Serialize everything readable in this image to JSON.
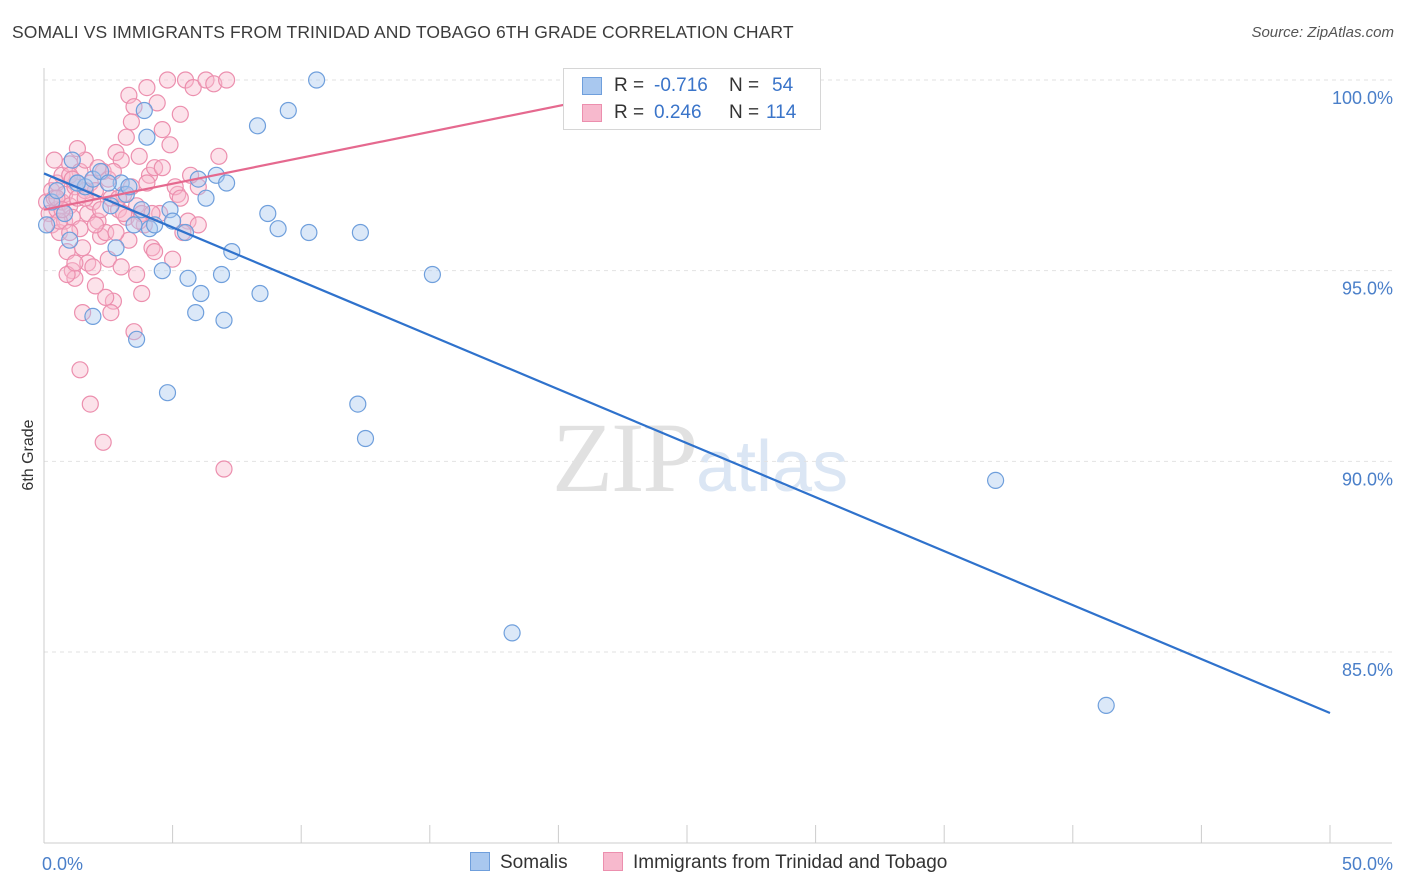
{
  "header": {
    "title": "SOMALI VS IMMIGRANTS FROM TRINIDAD AND TOBAGO 6TH GRADE CORRELATION CHART",
    "source": "Source: ZipAtlas.com"
  },
  "watermark": {
    "zip": "ZIP",
    "atlas": "atlas"
  },
  "legend": {
    "r_label": "R =",
    "n_label": "N =",
    "rows": [
      {
        "r": "-0.716",
        "n": "54"
      },
      {
        "r": "0.246",
        "n": "114"
      }
    ]
  },
  "bottom_legend": {
    "somali": "Somalis",
    "trinidad": "Immigrants from Trinidad and Tobago"
  },
  "colors": {
    "blue_fill": "#a9c8ef",
    "blue_stroke": "#6f9fdc",
    "blue_line": "#2f72cc",
    "pink_fill": "#f7b9cd",
    "pink_stroke": "#ec8fae",
    "pink_line": "#e5698f"
  },
  "chart_data": {
    "type": "scatter",
    "title": "SOMALI VS IMMIGRANTS FROM TRINIDAD AND TOBAGO 6TH GRADE CORRELATION CHART",
    "xlabel": "",
    "ylabel": "6th Grade",
    "xlim": [
      0,
      50
    ],
    "ylim": [
      80.5,
      101.0
    ],
    "x_tick_labels": [
      "0.0%",
      "50.0%"
    ],
    "y_ticks": [
      {
        "value": 100,
        "label": "100.0%"
      },
      {
        "value": 95,
        "label": "95.0%"
      },
      {
        "value": 90,
        "label": "90.0%"
      },
      {
        "value": 85,
        "label": "85.0%"
      }
    ],
    "series": [
      {
        "name": "Somalis",
        "color": "blue",
        "points": [
          [
            0.1,
            96.2
          ],
          [
            0.3,
            96.8
          ],
          [
            0.5,
            97.1
          ],
          [
            0.8,
            96.5
          ],
          [
            1.0,
            95.8
          ],
          [
            1.1,
            97.9
          ],
          [
            1.3,
            97.3
          ],
          [
            1.6,
            97.2
          ],
          [
            1.9,
            97.4
          ],
          [
            2.2,
            97.6
          ],
          [
            2.6,
            96.7
          ],
          [
            3.0,
            97.3
          ],
          [
            3.2,
            97.0
          ],
          [
            3.5,
            96.2
          ],
          [
            3.8,
            96.6
          ],
          [
            4.1,
            96.1
          ],
          [
            4.3,
            96.2
          ],
          [
            4.9,
            96.6
          ],
          [
            6.0,
            97.4
          ],
          [
            6.3,
            96.9
          ],
          [
            6.7,
            97.5
          ],
          [
            7.1,
            97.3
          ],
          [
            8.3,
            98.8
          ],
          [
            9.5,
            99.2
          ],
          [
            10.6,
            100.0
          ],
          [
            1.3,
            97.3
          ],
          [
            2.8,
            95.6
          ],
          [
            4.0,
            98.5
          ],
          [
            5.5,
            96.0
          ],
          [
            5.0,
            96.3
          ],
          [
            8.7,
            96.5
          ],
          [
            9.1,
            96.1
          ],
          [
            12.3,
            96.0
          ],
          [
            3.9,
            99.2
          ],
          [
            4.6,
            95.0
          ],
          [
            5.6,
            94.8
          ],
          [
            6.9,
            94.9
          ],
          [
            7.3,
            95.5
          ],
          [
            8.4,
            94.4
          ],
          [
            1.9,
            93.8
          ],
          [
            3.6,
            93.2
          ],
          [
            4.8,
            91.8
          ],
          [
            6.1,
            94.4
          ],
          [
            7.0,
            93.7
          ],
          [
            12.2,
            91.5
          ],
          [
            12.5,
            90.6
          ],
          [
            10.3,
            96.0
          ],
          [
            15.1,
            94.9
          ],
          [
            18.2,
            85.5
          ],
          [
            37.0,
            89.5
          ],
          [
            41.3,
            83.6
          ],
          [
            3.3,
            97.2
          ],
          [
            5.9,
            93.9
          ],
          [
            2.5,
            97.3
          ]
        ]
      },
      {
        "name": "Immigrants from Trinidad and Tobago",
        "color": "pink",
        "points": [
          [
            0.1,
            96.8
          ],
          [
            0.2,
            96.5
          ],
          [
            0.3,
            97.1
          ],
          [
            0.3,
            96.2
          ],
          [
            0.4,
            96.9
          ],
          [
            0.5,
            97.3
          ],
          [
            0.5,
            96.6
          ],
          [
            0.6,
            96.0
          ],
          [
            0.7,
            97.5
          ],
          [
            0.7,
            96.8
          ],
          [
            0.8,
            97.0
          ],
          [
            0.8,
            96.3
          ],
          [
            0.9,
            95.5
          ],
          [
            1.0,
            96.7
          ],
          [
            1.0,
            97.8
          ],
          [
            1.1,
            96.4
          ],
          [
            1.1,
            95.0
          ],
          [
            1.2,
            97.2
          ],
          [
            1.2,
            94.8
          ],
          [
            1.3,
            96.9
          ],
          [
            1.4,
            97.6
          ],
          [
            1.4,
            96.1
          ],
          [
            1.5,
            95.6
          ],
          [
            1.6,
            97.9
          ],
          [
            1.7,
            96.5
          ],
          [
            1.7,
            95.2
          ],
          [
            1.8,
            97.3
          ],
          [
            1.9,
            96.8
          ],
          [
            2.0,
            94.6
          ],
          [
            2.0,
            97.1
          ],
          [
            2.1,
            96.3
          ],
          [
            2.2,
            95.9
          ],
          [
            2.3,
            97.6
          ],
          [
            2.4,
            96.0
          ],
          [
            2.5,
            95.3
          ],
          [
            2.5,
            97.4
          ],
          [
            2.6,
            96.9
          ],
          [
            2.7,
            94.2
          ],
          [
            2.8,
            98.1
          ],
          [
            2.9,
            96.6
          ],
          [
            3.0,
            95.1
          ],
          [
            3.1,
            97.0
          ],
          [
            3.2,
            96.4
          ],
          [
            3.3,
            99.6
          ],
          [
            3.3,
            95.8
          ],
          [
            3.4,
            97.2
          ],
          [
            3.5,
            99.3
          ],
          [
            3.6,
            96.7
          ],
          [
            3.7,
            98.0
          ],
          [
            3.8,
            94.4
          ],
          [
            3.9,
            96.2
          ],
          [
            4.0,
            99.8
          ],
          [
            4.1,
            97.5
          ],
          [
            4.2,
            95.6
          ],
          [
            4.3,
            97.7
          ],
          [
            4.4,
            99.4
          ],
          [
            4.5,
            96.5
          ],
          [
            4.6,
            98.7
          ],
          [
            4.8,
            100.0
          ],
          [
            5.0,
            95.3
          ],
          [
            5.2,
            97.0
          ],
          [
            5.3,
            99.1
          ],
          [
            5.5,
            100.0
          ],
          [
            5.6,
            96.3
          ],
          [
            5.8,
            99.8
          ],
          [
            6.0,
            97.2
          ],
          [
            6.3,
            100.0
          ],
          [
            6.6,
            99.9
          ],
          [
            6.8,
            98.0
          ],
          [
            7.1,
            100.0
          ],
          [
            0.4,
            97.9
          ],
          [
            0.6,
            96.3
          ],
          [
            0.9,
            94.9
          ],
          [
            1.3,
            98.2
          ],
          [
            1.5,
            93.9
          ],
          [
            1.6,
            97.1
          ],
          [
            1.9,
            95.1
          ],
          [
            2.1,
            97.7
          ],
          [
            2.4,
            94.3
          ],
          [
            2.6,
            93.9
          ],
          [
            2.8,
            96.0
          ],
          [
            3.0,
            97.9
          ],
          [
            3.2,
            98.5
          ],
          [
            3.4,
            98.9
          ],
          [
            3.6,
            94.9
          ],
          [
            3.8,
            96.5
          ],
          [
            4.0,
            97.3
          ],
          [
            4.3,
            95.5
          ],
          [
            4.6,
            97.7
          ],
          [
            4.9,
            98.3
          ],
          [
            5.1,
            97.2
          ],
          [
            5.4,
            96.0
          ],
          [
            5.7,
            97.5
          ],
          [
            6.0,
            96.2
          ],
          [
            1.0,
            96.0
          ],
          [
            1.2,
            95.2
          ],
          [
            1.4,
            92.4
          ],
          [
            1.8,
            91.5
          ],
          [
            2.3,
            90.5
          ],
          [
            3.5,
            93.4
          ],
          [
            7.0,
            89.8
          ],
          [
            1.0,
            97.5
          ],
          [
            2.0,
            96.2
          ],
          [
            3.1,
            96.5
          ],
          [
            2.7,
            97.6
          ],
          [
            0.5,
            96.9
          ],
          [
            0.7,
            96.6
          ],
          [
            1.1,
            97.4
          ],
          [
            1.6,
            96.9
          ],
          [
            2.2,
            96.6
          ],
          [
            4.2,
            96.5
          ],
          [
            5.3,
            96.9
          ],
          [
            3.7,
            96.3
          ],
          [
            2.9,
            96.9
          ]
        ]
      }
    ],
    "trend_lines": [
      {
        "series": "Somalis",
        "x": [
          0,
          50
        ],
        "y": [
          97.55,
          83.4
        ]
      },
      {
        "series": "Immigrants from Trinidad and Tobago",
        "x": [
          0,
          25
        ],
        "y": [
          96.6,
          100.0
        ]
      }
    ]
  }
}
